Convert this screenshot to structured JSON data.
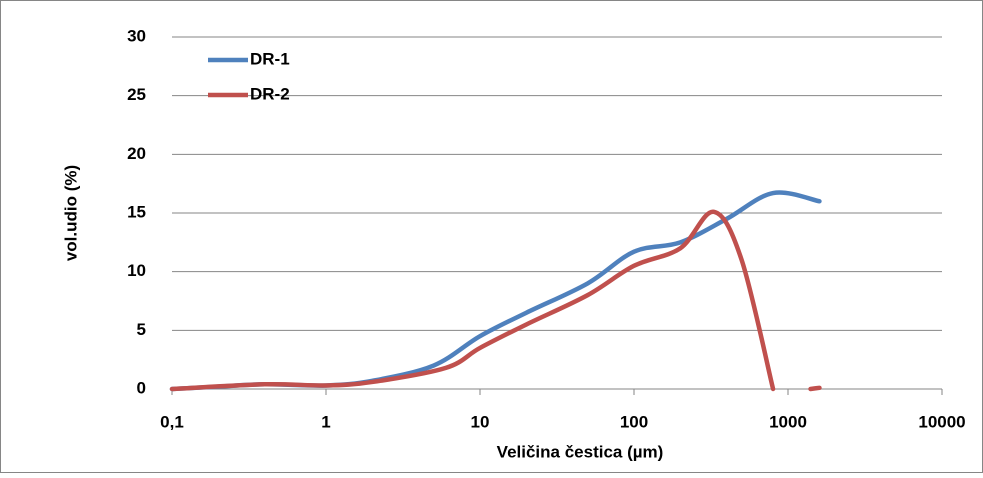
{
  "chart_data": {
    "type": "line",
    "xlabel": "Veličina čestica (µm)",
    "ylabel": "vol.udio (%)",
    "xscale": "log",
    "xlim": [
      0.1,
      10000
    ],
    "xticks": [
      {
        "value": 0.1,
        "label": "0,1"
      },
      1,
      10,
      100,
      1000,
      10000
    ],
    "ylim": [
      0,
      30
    ],
    "yticks": [
      0,
      5,
      10,
      15,
      20,
      25,
      30
    ],
    "grid": true,
    "legend": "upper-left",
    "series": [
      {
        "name": "DR-1",
        "color": "#4f81bd",
        "x": [
          0.1,
          0.2,
          0.4,
          1,
          2,
          5,
          10,
          20,
          50,
          100,
          200,
          400,
          800,
          1600
        ],
        "values": [
          0,
          0.2,
          0.4,
          0.3,
          0.7,
          2,
          4.5,
          6.5,
          9,
          11.7,
          12.5,
          14.5,
          16.7,
          16
        ]
      },
      {
        "name": "DR-2",
        "color": "#c0504d",
        "x": [
          0.1,
          0.4,
          1,
          2,
          6,
          10,
          20,
          50,
          100,
          200,
          330,
          500,
          800,
          1000,
          1400,
          1600
        ],
        "values": [
          0,
          0.4,
          0.3,
          0.6,
          1.8,
          3.5,
          5.5,
          8,
          10.5,
          12,
          15.1,
          11,
          0,
          null,
          0,
          0.1
        ]
      }
    ]
  }
}
